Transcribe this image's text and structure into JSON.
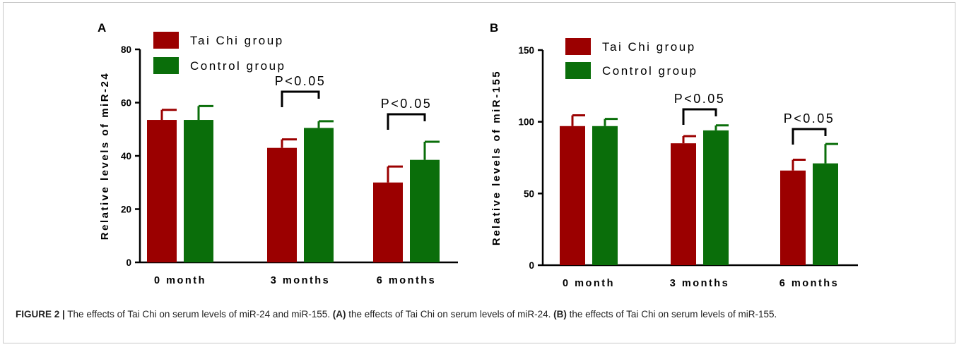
{
  "chart_data": [
    {
      "panel": "A",
      "type": "bar",
      "categories": [
        "0 month",
        "3 months",
        "6 months"
      ],
      "ylabel": "Relative levels of miR-24",
      "ylim": [
        0,
        80
      ],
      "yticks": [
        0,
        20,
        40,
        60,
        80
      ],
      "legend_position": "top-left",
      "series": [
        {
          "name": "Tai Chi group",
          "values": [
            53.5,
            43,
            30
          ],
          "errors": [
            3.8,
            3.2,
            6
          ],
          "color": "#9b0000"
        },
        {
          "name": "Control group",
          "values": [
            53.5,
            50.5,
            38.5
          ],
          "errors": [
            5.2,
            2.5,
            6.8
          ],
          "color": "#0a6e0a"
        }
      ],
      "annotations": [
        {
          "category": "3 months",
          "text": "P<0.05"
        },
        {
          "category": "6 months",
          "text": "P<0.05"
        }
      ]
    },
    {
      "panel": "B",
      "type": "bar",
      "categories": [
        "0 month",
        "3 months",
        "6 months"
      ],
      "ylabel": "Relative levels of miR-155",
      "ylim": [
        0,
        150
      ],
      "yticks": [
        0,
        50,
        100,
        150
      ],
      "legend_position": "top-left",
      "series": [
        {
          "name": "Tai Chi group",
          "values": [
            97,
            85,
            66
          ],
          "errors": [
            7.5,
            5,
            7.5
          ],
          "color": "#9b0000"
        },
        {
          "name": "Control group",
          "values": [
            97,
            94,
            71
          ],
          "errors": [
            5,
            3.5,
            13.5
          ],
          "color": "#0a6e0a"
        }
      ],
      "annotations": [
        {
          "category": "3 months",
          "text": "P<0.05"
        },
        {
          "category": "6 months",
          "text": "P<0.05"
        }
      ]
    }
  ],
  "caption": {
    "label": "FIGURE 2 |",
    "text_1": " The effects of Tai Chi on serum levels of miR-24 and miR-155. ",
    "tag_a": "(A)",
    "text_2": " the effects of Tai Chi on serum levels of miR-24. ",
    "tag_b": "(B)",
    "text_3": " the effects of Tai Chi on serum levels of miR-155."
  }
}
